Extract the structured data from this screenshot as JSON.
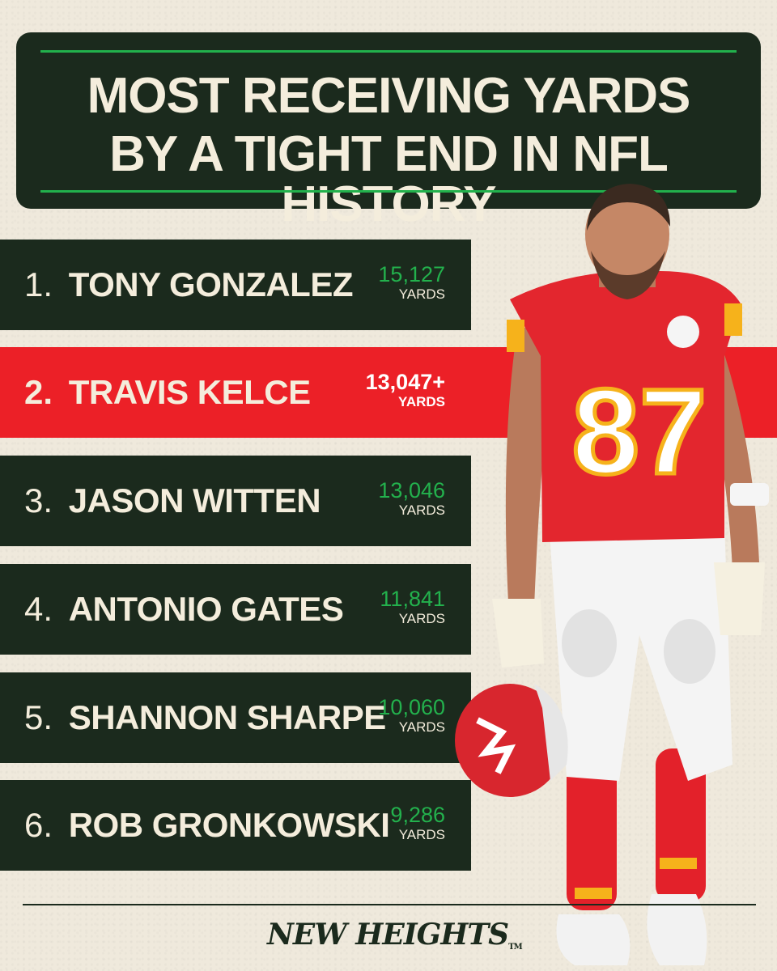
{
  "title": {
    "line1": "MOST RECEIVING YARDS",
    "line2": "BY A TIGHT END IN NFL HISTORY"
  },
  "rankings": [
    {
      "rank": "1.",
      "name": "TONY GONZALEZ",
      "yards": "15,127",
      "unit": "YARDS"
    },
    {
      "rank": "2.",
      "name": "TRAVIS KELCE",
      "yards": "13,047+",
      "unit": "YARDS"
    },
    {
      "rank": "3.",
      "name": "JASON WITTEN",
      "yards": "13,046",
      "unit": "YARDS"
    },
    {
      "rank": "4.",
      "name": "ANTONIO GATES",
      "yards": "11,841",
      "unit": "YARDS"
    },
    {
      "rank": "5.",
      "name": "SHANNON SHARPE",
      "yards": "10,060",
      "unit": "YARDS"
    },
    {
      "rank": "6.",
      "name": "ROB GRONKOWSKI",
      "yards": "9,286",
      "unit": "YARDS"
    }
  ],
  "player_photo": {
    "jersey_number": "87"
  },
  "brand": {
    "name": "NEW HEIGHTS",
    "trademark": "TM"
  },
  "colors": {
    "dark_green": "#1b2a1d",
    "accent_green": "#22b14c",
    "highlight_red": "#ec2027",
    "cream": "#f4eddc",
    "background": "#efe9dc"
  }
}
